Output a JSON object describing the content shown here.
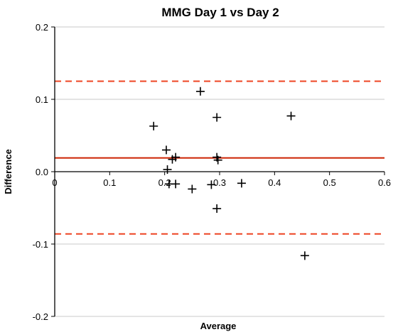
{
  "chart_data": {
    "type": "scatter",
    "title": "MMG Day 1 vs Day 2",
    "xlabel": "Average",
    "ylabel": "Difference",
    "xlim": [
      0,
      0.6
    ],
    "ylim": [
      -0.2,
      0.2
    ],
    "x_ticks": [
      {
        "value": 0,
        "label": "0"
      },
      {
        "value": 0.1,
        "label": "0.1"
      },
      {
        "value": 0.2,
        "label": "0.2"
      },
      {
        "value": 0.3,
        "label": "0.3"
      },
      {
        "value": 0.4,
        "label": "0.4"
      },
      {
        "value": 0.5,
        "label": "0.5"
      },
      {
        "value": 0.6,
        "label": "0.6"
      }
    ],
    "y_ticks": [
      {
        "value": 0.2,
        "label": "0.2"
      },
      {
        "value": 0.1,
        "label": "0.1"
      },
      {
        "value": 0.0,
        "label": "0.0"
      },
      {
        "value": -0.1,
        "label": "-0.1"
      },
      {
        "value": -0.2,
        "label": "-0.2"
      }
    ],
    "grid": "horizontal",
    "marker": "plus",
    "colors": {
      "points": "#000000",
      "mean_line": "#cc2200",
      "limit_lines": "#ee4422",
      "grid": "#c8c8c8"
    },
    "mean_difference": 0.019,
    "upper_limit": 0.125,
    "lower_limit": -0.086,
    "points": [
      {
        "x": 0.18,
        "y": 0.063
      },
      {
        "x": 0.203,
        "y": 0.03
      },
      {
        "x": 0.205,
        "y": 0.003
      },
      {
        "x": 0.208,
        "y": -0.017
      },
      {
        "x": 0.214,
        "y": 0.017
      },
      {
        "x": 0.22,
        "y": 0.02
      },
      {
        "x": 0.22,
        "y": -0.017
      },
      {
        "x": 0.25,
        "y": -0.024
      },
      {
        "x": 0.265,
        "y": 0.111
      },
      {
        "x": 0.285,
        "y": -0.018
      },
      {
        "x": 0.295,
        "y": 0.075
      },
      {
        "x": 0.295,
        "y": 0.02
      },
      {
        "x": 0.297,
        "y": 0.016
      },
      {
        "x": 0.295,
        "y": -0.051
      },
      {
        "x": 0.34,
        "y": -0.016
      },
      {
        "x": 0.43,
        "y": 0.077
      },
      {
        "x": 0.455,
        "y": -0.116
      }
    ]
  }
}
